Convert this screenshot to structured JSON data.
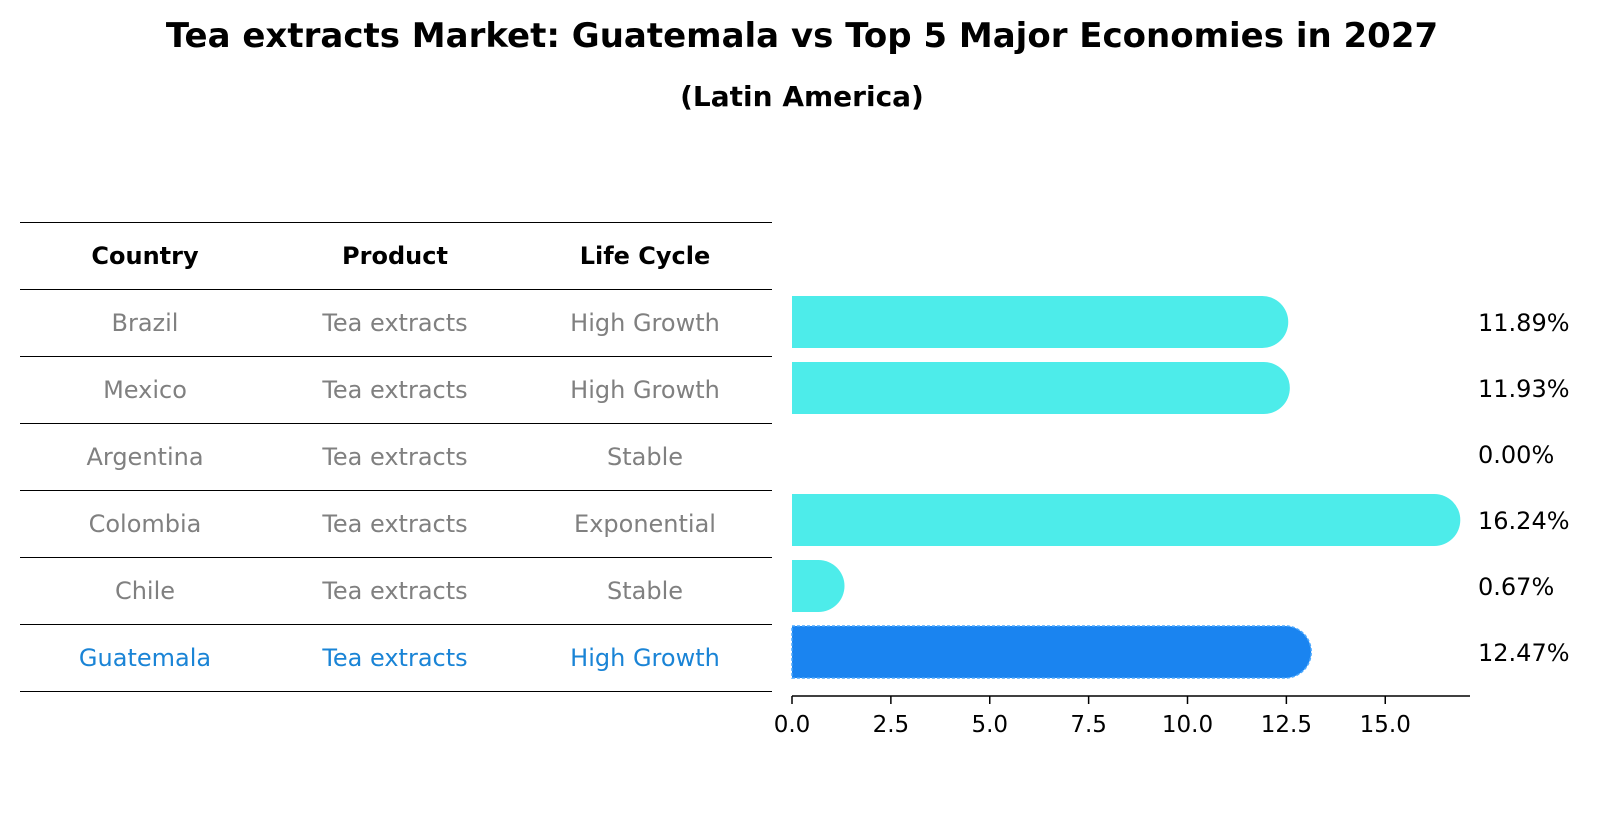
{
  "title": "Tea extracts Market: Guatemala vs Top 5 Major Economies in 2027",
  "subtitle": "(Latin America)",
  "colors": {
    "bar": "#4DECEA",
    "highlight_bar": "#1A84F0",
    "text_gray": "#808080",
    "text_highlight": "#1A84D6"
  },
  "table": {
    "headers": [
      "Country",
      "Product",
      "Life Cycle"
    ],
    "rows": [
      {
        "country": "Brazil",
        "product": "Tea extracts",
        "life_cycle": "High Growth",
        "highlight": false
      },
      {
        "country": "Mexico",
        "product": "Tea extracts",
        "life_cycle": "High Growth",
        "highlight": false
      },
      {
        "country": "Argentina",
        "product": "Tea extracts",
        "life_cycle": "Stable",
        "highlight": false
      },
      {
        "country": "Colombia",
        "product": "Tea extracts",
        "life_cycle": "Exponential",
        "highlight": false
      },
      {
        "country": "Chile",
        "product": "Tea extracts",
        "life_cycle": "Stable",
        "highlight": false
      },
      {
        "country": "Guatemala",
        "product": "Tea extracts",
        "life_cycle": "High Growth",
        "highlight": true
      }
    ]
  },
  "chart_data": {
    "type": "bar",
    "orientation": "horizontal",
    "categories": [
      "Brazil",
      "Mexico",
      "Argentina",
      "Colombia",
      "Chile",
      "Guatemala"
    ],
    "values": [
      11.89,
      11.93,
      0.0,
      16.24,
      0.67,
      12.47
    ],
    "value_labels": [
      "11.89%",
      "11.93%",
      "0.00%",
      "16.24%",
      "0.67%",
      "12.47%"
    ],
    "highlight_category": "Guatemala",
    "xlim": [
      0,
      17.1
    ],
    "xticks": [
      0.0,
      2.5,
      5.0,
      7.5,
      10.0,
      12.5,
      15.0
    ],
    "xtick_labels": [
      "0.0",
      "2.5",
      "5.0",
      "7.5",
      "10.0",
      "12.5",
      "15.0"
    ],
    "xlabel": "",
    "ylabel": ""
  }
}
